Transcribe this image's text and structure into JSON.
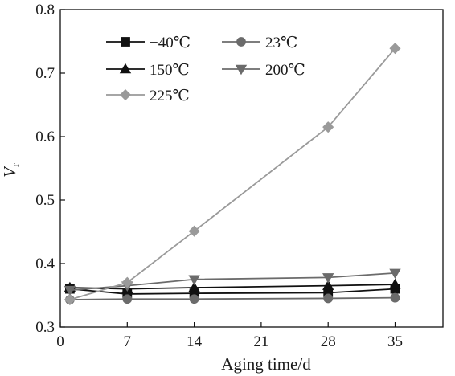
{
  "chart_data": {
    "type": "line",
    "title": "",
    "xlabel": "Aging time/d",
    "ylabel_main": "V",
    "ylabel_sub": "r",
    "xlim": [
      0,
      40
    ],
    "ylim": [
      0.3,
      0.8
    ],
    "xticks": [
      0,
      7,
      14,
      21,
      28,
      35
    ],
    "xtick_labels": [
      "0",
      "7",
      "14",
      "21",
      "28",
      "35"
    ],
    "yticks": [
      0.3,
      0.4,
      0.5,
      0.6,
      0.7,
      0.8
    ],
    "ytick_labels": [
      "0.3",
      "0.4",
      "0.5",
      "0.6",
      "0.7",
      "0.8"
    ],
    "grid": false,
    "legend_position": "top-left",
    "x": [
      1,
      7,
      14,
      28,
      35
    ],
    "series": [
      {
        "name": "−40℃",
        "marker": "square",
        "color": "#111111",
        "values": [
          0.36,
          0.352,
          0.353,
          0.354,
          0.36
        ]
      },
      {
        "name": "23℃",
        "marker": "circle",
        "color": "#6b6b6b",
        "values": [
          0.343,
          0.344,
          0.344,
          0.345,
          0.346
        ]
      },
      {
        "name": "150℃",
        "marker": "triangle-up",
        "color": "#111111",
        "values": [
          0.362,
          0.36,
          0.362,
          0.365,
          0.367
        ]
      },
      {
        "name": "200℃",
        "marker": "triangle-down",
        "color": "#6b6b6b",
        "values": [
          0.358,
          0.365,
          0.375,
          0.378,
          0.385
        ]
      },
      {
        "name": "225℃",
        "marker": "diamond",
        "color": "#9a9a9a",
        "values": [
          0.343,
          0.37,
          0.451,
          0.615,
          0.739
        ]
      }
    ]
  }
}
